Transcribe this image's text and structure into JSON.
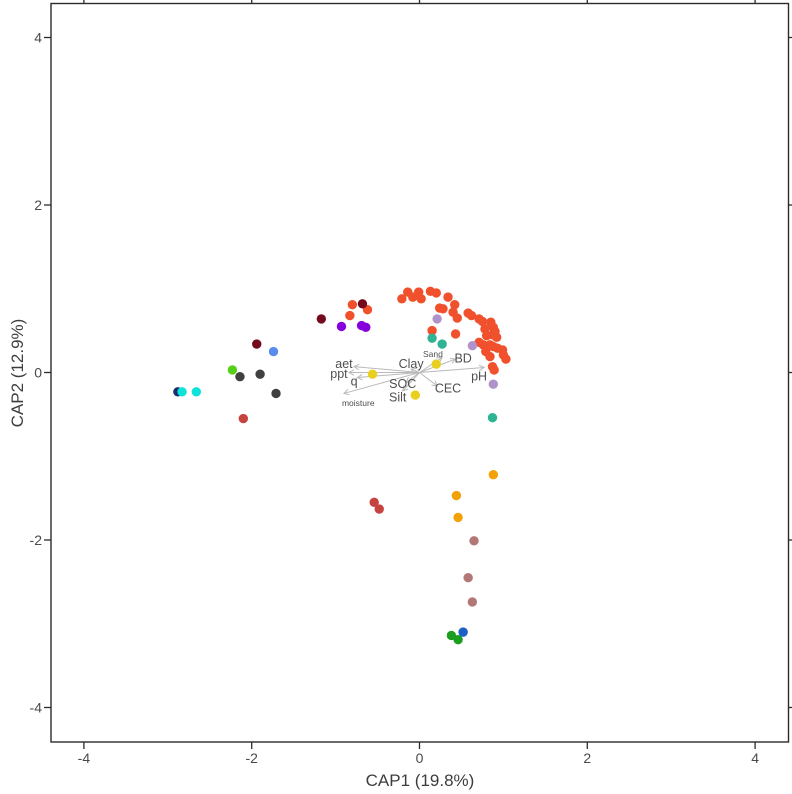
{
  "figure": {
    "background": "#ffffff",
    "frame_color": "#2b2b2b"
  },
  "chart_data": {
    "type": "scatter",
    "title": "",
    "xlabel": "CAP1 (19.8%)",
    "ylabel": "CAP2 (12.9%)",
    "xlim": [
      -4.39,
      4.39
    ],
    "ylim": [
      -4.41,
      4.41
    ],
    "x_ticks": [
      -4,
      -2,
      0,
      2,
      4
    ],
    "y_ticks": [
      -4,
      -2,
      0,
      2,
      4
    ],
    "grid": false,
    "legend": "none",
    "point_radius": 4.7,
    "series": [
      {
        "name": "sites-tomato",
        "color": "#f0502c",
        "points": [
          [
            -0.8,
            0.81
          ],
          [
            -0.62,
            0.75
          ],
          [
            -0.83,
            0.68
          ],
          [
            -0.21,
            0.88
          ],
          [
            -0.14,
            0.96
          ],
          [
            -0.08,
            0.9
          ],
          [
            -0.01,
            0.96
          ],
          [
            0.02,
            0.88
          ],
          [
            0.13,
            0.97
          ],
          [
            0.2,
            0.95
          ],
          [
            0.34,
            0.9
          ],
          [
            0.42,
            0.81
          ],
          [
            0.24,
            0.77
          ],
          [
            0.28,
            0.76
          ],
          [
            0.4,
            0.72
          ],
          [
            0.45,
            0.65
          ],
          [
            0.58,
            0.71
          ],
          [
            0.62,
            0.68
          ],
          [
            0.71,
            0.64
          ],
          [
            0.75,
            0.61
          ],
          [
            0.78,
            0.52
          ],
          [
            0.85,
            0.6
          ],
          [
            0.88,
            0.54
          ],
          [
            0.9,
            0.49
          ],
          [
            0.8,
            0.44
          ],
          [
            0.15,
            0.5
          ],
          [
            0.43,
            0.46
          ],
          [
            0.87,
            0.45
          ],
          [
            0.92,
            0.42
          ],
          [
            0.71,
            0.36
          ],
          [
            0.76,
            0.33
          ],
          [
            0.84,
            0.33
          ],
          [
            0.88,
            0.31
          ],
          [
            0.93,
            0.29
          ],
          [
            0.99,
            0.27
          ],
          [
            1.0,
            0.21
          ],
          [
            1.03,
            0.16
          ],
          [
            0.84,
            0.19
          ],
          [
            0.79,
            0.25
          ],
          [
            0.87,
            0.07
          ],
          [
            0.89,
            0.03
          ]
        ]
      },
      {
        "name": "sites-darkred",
        "color": "#740a1d",
        "points": [
          [
            -1.17,
            0.64
          ],
          [
            -0.68,
            0.82
          ],
          [
            -1.94,
            0.34
          ]
        ]
      },
      {
        "name": "sites-violet",
        "color": "#8500dd",
        "points": [
          [
            -0.93,
            0.55
          ],
          [
            -0.69,
            0.56
          ],
          [
            -0.64,
            0.54
          ]
        ]
      },
      {
        "name": "sites-plum",
        "color": "#b193cb",
        "points": [
          [
            0.21,
            0.64
          ],
          [
            0.63,
            0.32
          ],
          [
            0.88,
            -0.14
          ]
        ]
      },
      {
        "name": "sites-teal",
        "color": "#2eb394",
        "points": [
          [
            0.15,
            0.41
          ],
          [
            0.27,
            0.34
          ],
          [
            0.87,
            -0.54
          ]
        ]
      },
      {
        "name": "sites-gold",
        "color": "#e9d01f",
        "points": [
          [
            -0.56,
            -0.02
          ],
          [
            0.2,
            0.1
          ],
          [
            -0.05,
            -0.27
          ]
        ]
      },
      {
        "name": "sites-orange",
        "color": "#f2a207",
        "points": [
          [
            0.88,
            -1.22
          ],
          [
            0.44,
            -1.47
          ],
          [
            0.46,
            -1.73
          ]
        ]
      },
      {
        "name": "sites-navy",
        "color": "#17306b",
        "points": [
          [
            -2.88,
            -0.23
          ]
        ]
      },
      {
        "name": "sites-cyan",
        "color": "#0fe2da",
        "points": [
          [
            -2.83,
            -0.23
          ],
          [
            -2.66,
            -0.23
          ]
        ]
      },
      {
        "name": "sites-lawngreen",
        "color": "#55d019",
        "points": [
          [
            -2.23,
            0.03
          ]
        ]
      },
      {
        "name": "sites-darkgray",
        "color": "#404040",
        "points": [
          [
            -2.14,
            -0.05
          ],
          [
            -1.9,
            -0.02
          ],
          [
            -1.71,
            -0.25
          ]
        ]
      },
      {
        "name": "sites-cornflower",
        "color": "#5b8ced",
        "points": [
          [
            -1.74,
            0.25
          ]
        ]
      },
      {
        "name": "sites-brickred",
        "color": "#c64440",
        "points": [
          [
            -2.1,
            -0.55
          ],
          [
            -0.54,
            -1.55
          ],
          [
            -0.48,
            -1.63
          ]
        ]
      },
      {
        "name": "sites-rosybrown",
        "color": "#b27875",
        "points": [
          [
            0.65,
            -2.01
          ],
          [
            0.58,
            -2.45
          ],
          [
            0.63,
            -2.74
          ]
        ]
      },
      {
        "name": "sites-forestgreen",
        "color": "#1b9e20",
        "points": [
          [
            0.38,
            -3.14
          ],
          [
            0.46,
            -3.19
          ]
        ]
      },
      {
        "name": "sites-royalblue",
        "color": "#1d60c6",
        "points": [
          [
            0.52,
            -3.1
          ]
        ]
      }
    ],
    "vectors": {
      "origin": [
        0,
        0
      ],
      "color": "#b9b9b9",
      "label_color": "#4f4f4f",
      "items": [
        {
          "label": "aet",
          "tip": [
            -0.78,
            0.07
          ],
          "label_pos": [
            -0.9,
            0.1
          ],
          "small": false
        },
        {
          "label": "ppt",
          "tip": [
            -0.84,
            0.0
          ],
          "label_pos": [
            -0.96,
            -0.02
          ],
          "small": false
        },
        {
          "label": "q",
          "tip": [
            -0.74,
            -0.06
          ],
          "label_pos": [
            -0.78,
            -0.11
          ],
          "small": false
        },
        {
          "label": "moisture",
          "tip": [
            -0.9,
            -0.25
          ],
          "label_pos": [
            -0.73,
            -0.35
          ],
          "small": true
        },
        {
          "label": "Clay",
          "tip": [
            -0.1,
            0.04
          ],
          "label_pos": [
            -0.1,
            0.1
          ],
          "small": false
        },
        {
          "label": "SOC",
          "tip": [
            -0.16,
            -0.12
          ],
          "label_pos": [
            -0.2,
            -0.14
          ],
          "small": false
        },
        {
          "label": "Silt",
          "tip": [
            -0.2,
            -0.22
          ],
          "label_pos": [
            -0.26,
            -0.3
          ],
          "small": false
        },
        {
          "label": "Sand",
          "tip": [
            0.27,
            0.18
          ],
          "label_pos": [
            0.16,
            0.23
          ],
          "small": true
        },
        {
          "label": "BD",
          "tip": [
            0.43,
            0.16
          ],
          "label_pos": [
            0.52,
            0.17
          ],
          "small": false
        },
        {
          "label": "CEC",
          "tip": [
            0.21,
            -0.16
          ],
          "label_pos": [
            0.34,
            -0.19
          ],
          "small": false
        },
        {
          "label": "pH",
          "tip": [
            0.77,
            0.06
          ],
          "label_pos": [
            0.71,
            -0.05
          ],
          "small": false
        }
      ]
    }
  }
}
